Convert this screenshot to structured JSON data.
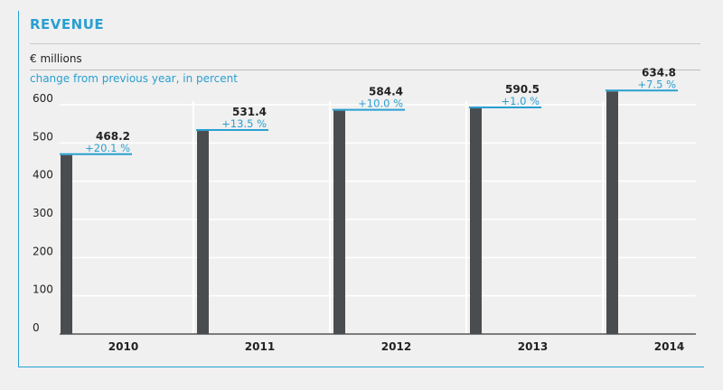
{
  "title": "REVENUE",
  "unit_label": "€ millions",
  "change_label": "change from previous year, in percent",
  "colors": {
    "bar": "#4a4d50",
    "accent": "#2a9fd0",
    "grid": "#ffffff",
    "text": "#222222"
  },
  "chart_data": {
    "type": "bar",
    "title": "REVENUE",
    "ylabel": "€ millions",
    "ylim": [
      0,
      600
    ],
    "yticks": [
      "0",
      "100",
      "200",
      "300",
      "400",
      "500",
      "600"
    ],
    "categories": [
      "2010",
      "2011",
      "2012",
      "2013",
      "2014"
    ],
    "values": [
      468.2,
      531.4,
      584.4,
      590.5,
      634.8
    ],
    "value_labels": [
      "468.2",
      "531.4",
      "584.4",
      "590.5",
      "634.8"
    ],
    "change_labels": [
      "+20.1 %",
      "+13.5 %",
      "+10.0 %",
      "+1.0 %",
      "+7.5 %"
    ],
    "grid": true
  }
}
